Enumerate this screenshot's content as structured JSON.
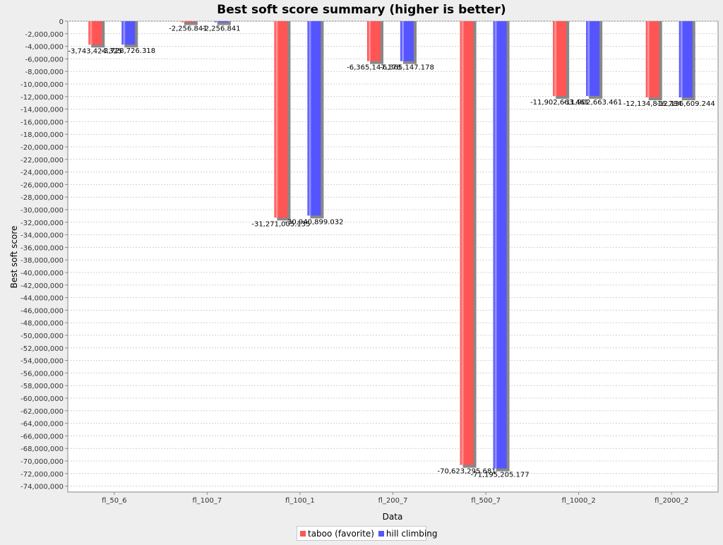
{
  "chart_data": {
    "type": "bar",
    "title": "Best soft score summary (higher is better)",
    "xlabel": "Data",
    "ylabel": "Best soft score",
    "categories": [
      "fl_50_6",
      "fl_100_7",
      "fl_100_1",
      "fl_200_7",
      "fl_500_7",
      "fl_1000_2",
      "fl_2000_2"
    ],
    "series": [
      {
        "name": "taboo (favorite)",
        "color": "#ff5555",
        "values": [
          -3743424.325,
          -2256.841,
          -31271005.135,
          -6365147.178,
          -70623295.681,
          -11902663.461,
          -12134816.784
        ],
        "labels": [
          "-3,743,424.325",
          "-2,256.841",
          "-31,271,005.135",
          "-6,365,147.178",
          "-70,623,295.681",
          "-11,902,663.461",
          "-12,134,816.784"
        ]
      },
      {
        "name": "hill climbing",
        "color": "#5555ff",
        "values": [
          -3728726.318,
          -2256.841,
          -30940899.032,
          -6365147.178,
          -71195205.177,
          -11902663.461,
          -12136609.244
        ],
        "labels": [
          "-3,728,726.318",
          "-2,256.841",
          "-30,940,899.032",
          "-6,365,147.178",
          "-71,195,205.177",
          "-11,902,663.461",
          "-12,136,609.244"
        ]
      }
    ],
    "ylim": [
      -75000000,
      0
    ],
    "yticks": [
      0,
      -2000000,
      -4000000,
      -6000000,
      -8000000,
      -10000000,
      -12000000,
      -14000000,
      -16000000,
      -18000000,
      -20000000,
      -22000000,
      -24000000,
      -26000000,
      -28000000,
      -30000000,
      -32000000,
      -34000000,
      -36000000,
      -38000000,
      -40000000,
      -42000000,
      -44000000,
      -46000000,
      -48000000,
      -50000000,
      -52000000,
      -54000000,
      -56000000,
      -58000000,
      -60000000,
      -62000000,
      -64000000,
      -66000000,
      -68000000,
      -70000000,
      -72000000,
      -74000000
    ],
    "ytick_labels": [
      "0",
      "-2,000,000",
      "-4,000,000",
      "-6,000,000",
      "-8,000,000",
      "-10,000,000",
      "-12,000,000",
      "-14,000,000",
      "-16,000,000",
      "-18,000,000",
      "-20,000,000",
      "-22,000,000",
      "-24,000,000",
      "-26,000,000",
      "-28,000,000",
      "-30,000,000",
      "-32,000,000",
      "-34,000,000",
      "-36,000,000",
      "-38,000,000",
      "-40,000,000",
      "-42,000,000",
      "-44,000,000",
      "-46,000,000",
      "-48,000,000",
      "-50,000,000",
      "-52,000,000",
      "-54,000,000",
      "-56,000,000",
      "-58,000,000",
      "-60,000,000",
      "-62,000,000",
      "-64,000,000",
      "-66,000,000",
      "-68,000,000",
      "-70,000,000",
      "-72,000,000",
      "-74,000,000"
    ],
    "grid": true,
    "legend_position": "bottom"
  }
}
